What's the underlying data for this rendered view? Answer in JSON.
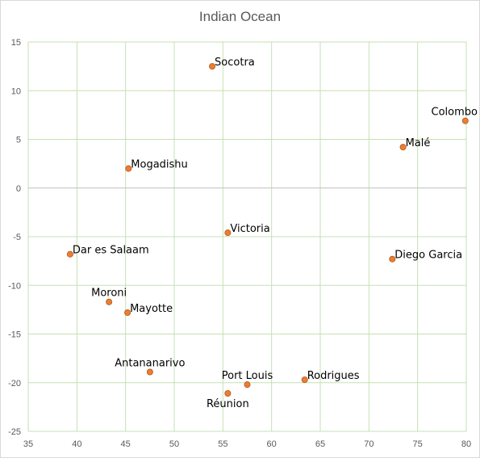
{
  "chart_data": {
    "type": "scatter",
    "title": "Indian Ocean",
    "xlabel": "",
    "ylabel": "",
    "xlim": [
      35,
      80
    ],
    "ylim": [
      -25,
      15
    ],
    "x_ticks": [
      35,
      40,
      45,
      50,
      55,
      60,
      65,
      70,
      75,
      80
    ],
    "y_ticks": [
      15,
      10,
      5,
      0,
      -5,
      -10,
      -15,
      -20,
      -25
    ],
    "grid": true,
    "legend": "none",
    "marker_color": "#ed7d31",
    "marker_edge_color": "#ae5a21",
    "gridline_color": "#c6e0b4",
    "points": [
      {
        "label": "Socotra",
        "x": 53.9,
        "y": 12.5,
        "label_pos": "right"
      },
      {
        "label": "Colombo",
        "x": 79.9,
        "y": 6.9,
        "label_pos": "above"
      },
      {
        "label": "Malé",
        "x": 73.5,
        "y": 4.2,
        "label_pos": "right"
      },
      {
        "label": "Mogadishu",
        "x": 45.3,
        "y": 2.0,
        "label_pos": "right"
      },
      {
        "label": "Victoria",
        "x": 55.5,
        "y": -4.6,
        "label_pos": "right"
      },
      {
        "label": "Dar es Salaam",
        "x": 39.3,
        "y": -6.8,
        "label_pos": "right"
      },
      {
        "label": "Diego Garcia",
        "x": 72.4,
        "y": -7.3,
        "label_pos": "right"
      },
      {
        "label": "Moroni",
        "x": 43.3,
        "y": -11.7,
        "label_pos": "above"
      },
      {
        "label": "Mayotte",
        "x": 45.2,
        "y": -12.8,
        "label_pos": "right"
      },
      {
        "label": "Antananarivo",
        "x": 47.5,
        "y": -18.9,
        "label_pos": "above"
      },
      {
        "label": "Port Louis",
        "x": 57.5,
        "y": -20.2,
        "label_pos": "above"
      },
      {
        "label": "Rodrigues",
        "x": 63.4,
        "y": -19.7,
        "label_pos": "right"
      },
      {
        "label": "Réunion",
        "x": 55.5,
        "y": -21.1,
        "label_pos": "below"
      }
    ]
  }
}
